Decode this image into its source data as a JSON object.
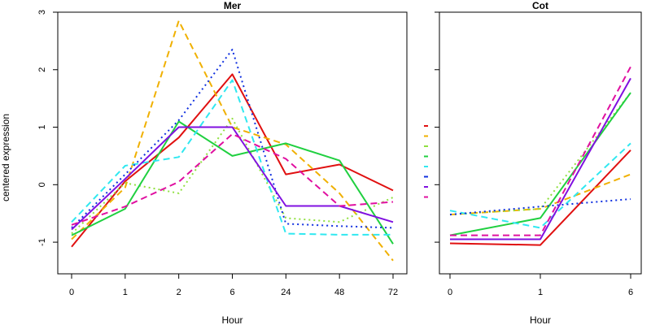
{
  "ylabel": "centered expression",
  "ylim": [
    -1.55,
    3
  ],
  "yticks": [
    -1,
    0,
    1,
    2,
    3
  ],
  "series_styles": [
    {
      "color": "#e01010",
      "dash": ""
    },
    {
      "color": "#f0b000",
      "dash": "8,5"
    },
    {
      "color": "#90e040",
      "dash": "2,4"
    },
    {
      "color": "#20d040",
      "dash": ""
    },
    {
      "color": "#30e8f0",
      "dash": "8,5"
    },
    {
      "color": "#1030e0",
      "dash": "2,4"
    },
    {
      "color": "#8010e0",
      "dash": ""
    },
    {
      "color": "#e010a0",
      "dash": "8,5"
    }
  ],
  "chart_data": [
    {
      "type": "line",
      "title": "Mer",
      "xlabel": "Hour",
      "categories": [
        "0",
        "1",
        "2",
        "6",
        "24",
        "48",
        "72"
      ],
      "ylim": [
        -1.55,
        3
      ],
      "series": [
        {
          "values": [
            -1.08,
            0.06,
            0.82,
            1.92,
            0.18,
            0.35,
            -0.1
          ]
        },
        {
          "values": [
            -0.95,
            -0.05,
            2.85,
            1.0,
            0.7,
            -0.15,
            -1.32
          ]
        },
        {
          "values": [
            -0.85,
            0.03,
            -0.15,
            1.15,
            -0.58,
            -0.65,
            -0.22
          ]
        },
        {
          "values": [
            -0.88,
            -0.42,
            1.1,
            0.5,
            0.72,
            0.42,
            -1.03
          ]
        },
        {
          "values": [
            -0.65,
            0.33,
            0.48,
            1.82,
            -0.85,
            -0.87,
            -0.87
          ]
        },
        {
          "values": [
            -0.75,
            0.18,
            1.12,
            2.35,
            -0.68,
            -0.72,
            -0.75
          ]
        },
        {
          "values": [
            -0.78,
            0.1,
            1.0,
            1.0,
            -0.37,
            -0.37,
            -0.65
          ]
        },
        {
          "values": [
            -0.7,
            -0.38,
            0.05,
            0.88,
            0.45,
            -0.37,
            -0.3
          ]
        }
      ]
    },
    {
      "type": "line",
      "title": "Cot",
      "xlabel": "Hour",
      "categories": [
        "0",
        "1",
        "6"
      ],
      "ylim": [
        -1.55,
        3
      ],
      "series": [
        {
          "values": [
            -1.02,
            -1.05,
            0.6
          ]
        },
        {
          "values": [
            -0.52,
            -0.42,
            0.18
          ]
        },
        {
          "values": [
            -0.52,
            -0.42,
            1.6
          ]
        },
        {
          "values": [
            -0.88,
            -0.58,
            1.6
          ]
        },
        {
          "values": [
            -0.45,
            -0.75,
            0.72
          ]
        },
        {
          "values": [
            -0.52,
            -0.38,
            -0.25
          ]
        },
        {
          "values": [
            -0.95,
            -0.95,
            1.85
          ]
        },
        {
          "values": [
            -0.88,
            -0.88,
            2.05
          ]
        }
      ]
    }
  ]
}
